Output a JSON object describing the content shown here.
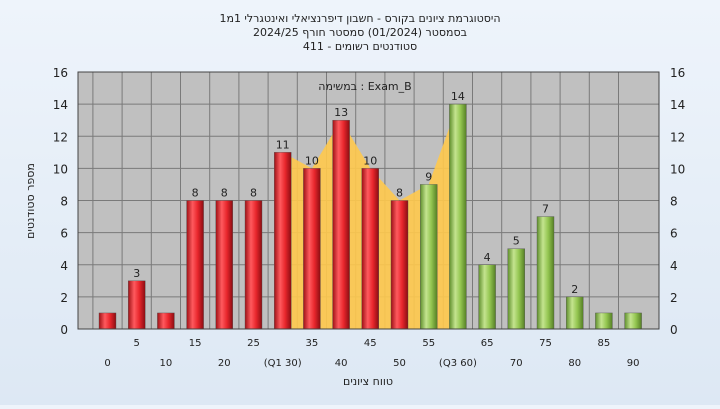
{
  "chart_data": {
    "type": "bar",
    "title_lines": [
      "היסטוגרמת ציונים בקורס - חשבון דיפרנציאלי ואינטגרלי 1מ1",
      "בסמסטר  (01/2024)  סמסטר חורף  2024/25",
      "סטודנטים רשומים - 411"
    ],
    "annotation": "במשימה : Exam_B",
    "ylabel": "מספר סטודנטים",
    "xlabel": "טווח ציונים",
    "ylim": [
      0,
      16
    ],
    "yticks": [
      0,
      2,
      4,
      6,
      8,
      10,
      12,
      14,
      16
    ],
    "categories": [
      "0",
      "5",
      "10",
      "15",
      "20",
      "25",
      "30",
      "35",
      "40",
      "45",
      "50",
      "55",
      "60",
      "65",
      "70",
      "75",
      "80",
      "85",
      "90"
    ],
    "x_tick_labels": [
      "0",
      "5",
      "10",
      "15",
      "20",
      "25",
      "(Q1 30)",
      "35",
      "40",
      "45",
      "50",
      "55",
      "(Q3 60)",
      "65",
      "70",
      "75",
      "80",
      "85",
      "90"
    ],
    "values": [
      1,
      3,
      1,
      8,
      8,
      8,
      11,
      10,
      13,
      10,
      8,
      9,
      14,
      4,
      5,
      7,
      2,
      1,
      1
    ],
    "data_labels": [
      "",
      "3",
      "",
      "8",
      "8",
      "8",
      "11",
      "10",
      "13",
      "10",
      "8",
      "9",
      "14",
      "4",
      "5",
      "7",
      "2",
      "",
      ""
    ],
    "bar_groups": [
      "red",
      "red",
      "red",
      "red",
      "red",
      "red",
      "red",
      "red",
      "red",
      "red",
      "red",
      "green",
      "green",
      "green",
      "green",
      "green",
      "green",
      "green",
      "green"
    ],
    "iqr_band": {
      "from": "30",
      "to": "60"
    },
    "grid": true,
    "colors": {
      "plot_bg": "#c0c0c0",
      "grid": "#7a7a7a",
      "red_bar": "#e8262c",
      "green_bar": "#94c651",
      "iqr_fill": "#ffc94d"
    }
  }
}
